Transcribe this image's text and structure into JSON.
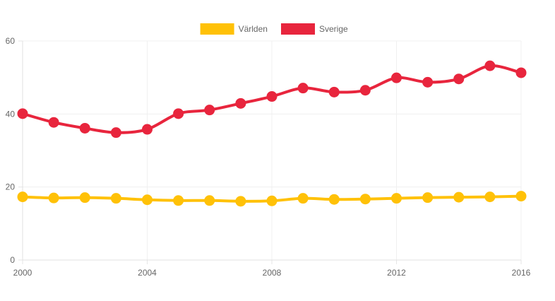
{
  "chart_data": {
    "type": "line",
    "x": [
      2000,
      2001,
      2002,
      2003,
      2004,
      2005,
      2006,
      2007,
      2008,
      2009,
      2010,
      2011,
      2012,
      2013,
      2014,
      2015,
      2016
    ],
    "series": [
      {
        "name": "Världen",
        "color": "#FFC107",
        "values": [
          17.3,
          17.0,
          17.1,
          16.9,
          16.5,
          16.3,
          16.3,
          16.1,
          16.2,
          16.9,
          16.6,
          16.7,
          16.9,
          17.1,
          17.2,
          17.3,
          17.5
        ]
      },
      {
        "name": "Sverige",
        "color": "#E8253D",
        "values": [
          40.1,
          37.7,
          36.1,
          34.9,
          35.8,
          40.1,
          41.1,
          42.9,
          44.8,
          47.1,
          46.0,
          46.5,
          49.9,
          48.7,
          49.6,
          53.2,
          51.3
        ]
      }
    ],
    "x_ticks": [
      "2000",
      "2004",
      "2008",
      "2012",
      "2016"
    ],
    "y_ticks": [
      "0",
      "20",
      "40",
      "60"
    ],
    "xlim": [
      2000,
      2016
    ],
    "ylim": [
      0,
      60
    ],
    "legend_position": "top-center",
    "grid": true
  }
}
